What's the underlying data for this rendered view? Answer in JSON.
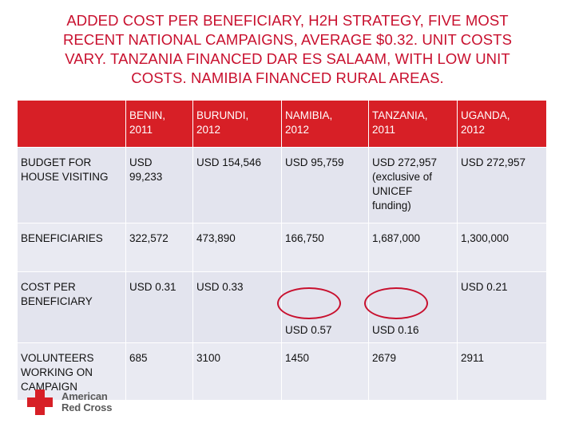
{
  "title_lines": [
    "ADDED COST PER BENEFICIARY, H2H STRATEGY, FIVE MOST",
    "RECENT NATIONAL CAMPAIGNS, AVERAGE $0.32. UNIT COSTS",
    "VARY. TANZANIA FINANCED DAR ES SALAAM, WITH LOW UNIT",
    "COSTS. NAMIBIA FINANCED RURAL AREAS."
  ],
  "table": {
    "header": [
      "",
      "BENIN,\n2011",
      "BURUNDI,\n2012",
      "NAMIBIA,\n2012",
      "TANZANIA,\n2011",
      "UGANDA,\n2012"
    ],
    "rows": [
      {
        "label": "BUDGET FOR\nHOUSE VISITING",
        "cells": [
          "USD\n99,233",
          "USD 154,546",
          "USD 95,759",
          "USD 272,957\n(exclusive of\nUNICEF\nfunding)",
          "USD 272,957"
        ]
      },
      {
        "label": "BENEFICIARIES",
        "cells": [
          "322,572",
          "473,890",
          "166,750",
          "1,687,000",
          "1,300,000"
        ]
      },
      {
        "label": "COST PER\nBENEFICIARY",
        "cells": [
          "USD 0.31",
          "USD 0.33",
          "USD 0.57",
          "USD 0.16",
          "USD 0.21"
        ]
      },
      {
        "label": "VOLUNTEERS\nWORKING ON\nCAMPAIGN",
        "cells": [
          "685",
          "3100",
          "1450",
          "2679",
          "2911"
        ]
      }
    ],
    "circled_cells": [
      "NAMIBIA cost per beneficiary",
      "TANZANIA cost per beneficiary"
    ]
  },
  "logo": {
    "line1": "American",
    "line2": "Red Cross"
  },
  "colors": {
    "accent": "#d71f26",
    "title": "#c8102e",
    "cell_bg": "#e3e4ee",
    "logo_text": "#5a5a5a"
  }
}
